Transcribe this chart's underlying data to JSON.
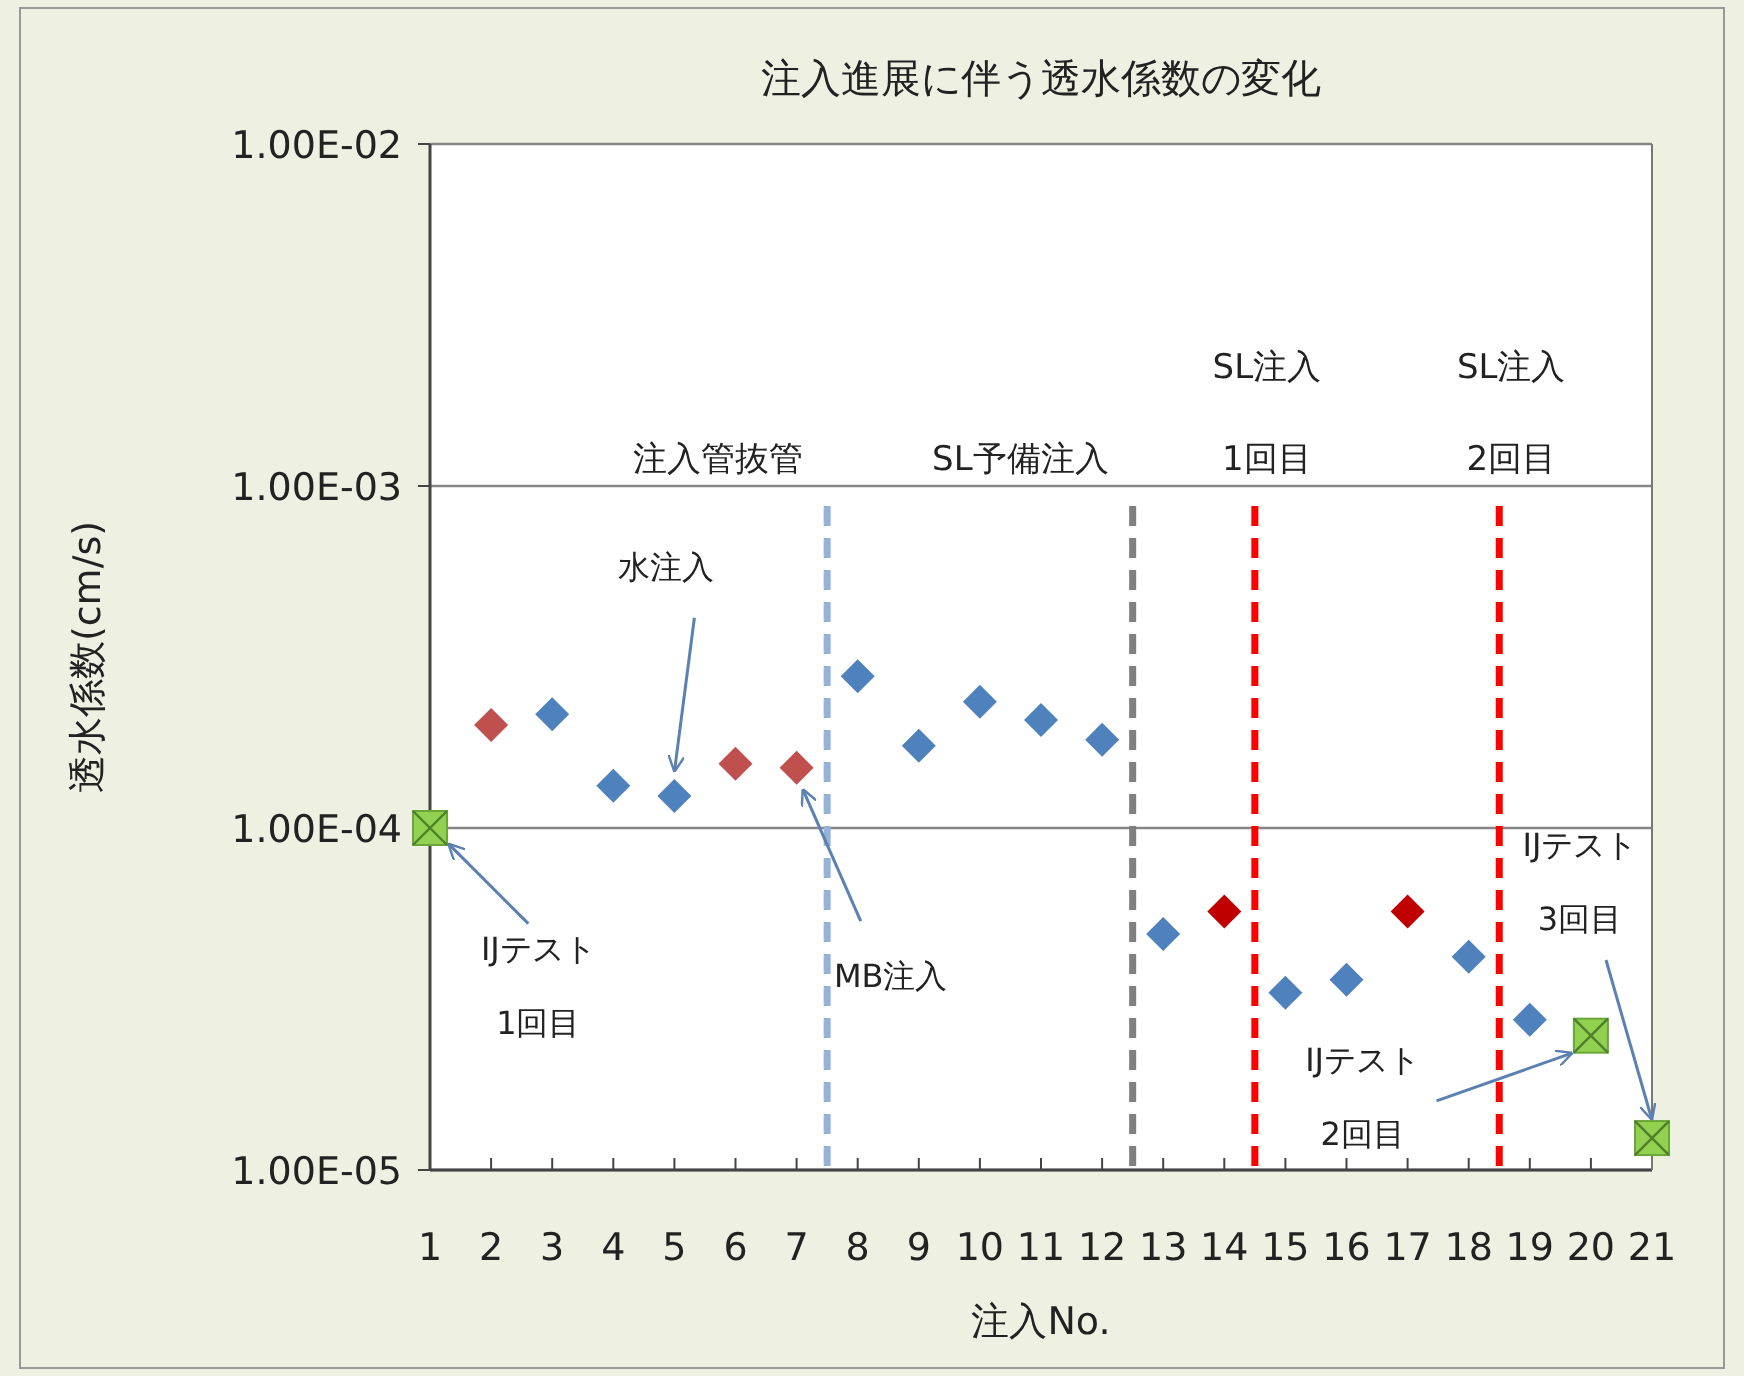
{
  "chart_data": {
    "type": "scatter",
    "title": "注入進展に伴う透水係数の変化",
    "xlabel": "注入No.",
    "ylabel": "透水係数(cm/s)",
    "xlim": [
      1,
      21
    ],
    "xticks": [
      1,
      2,
      3,
      4,
      5,
      6,
      7,
      8,
      9,
      10,
      11,
      12,
      13,
      14,
      15,
      16,
      17,
      18,
      19,
      20,
      21
    ],
    "log": "y",
    "ylim": [
      1e-05,
      0.01
    ],
    "yticks": [
      {
        "value": 1e-05,
        "label": "1.00E-05"
      },
      {
        "value": 0.0001,
        "label": "1.00E-04"
      },
      {
        "value": 0.001,
        "label": "1.00E-03"
      },
      {
        "value": 0.01,
        "label": "1.00E-02"
      }
    ],
    "grid": "y",
    "series": [
      {
        "color": "#4f81bd",
        "marker": "diamond",
        "x": [
          3,
          4,
          5,
          8,
          9,
          10,
          11,
          12,
          13,
          15,
          16,
          18,
          19
        ],
        "values": [
          0.000215,
          0.000133,
          0.000124,
          0.000278,
          0.000174,
          0.000234,
          0.000207,
          0.000181,
          4.9e-05,
          3.3e-05,
          3.6e-05,
          4.2e-05,
          2.75e-05
        ]
      },
      {
        "color": "#c0504d",
        "marker": "diamond",
        "x": [
          2,
          6,
          7
        ],
        "values": [
          0.0002,
          0.000154,
          0.00015
        ]
      },
      {
        "color": "#c00000",
        "marker": "diamond",
        "x": [
          14,
          17
        ],
        "values": [
          5.7e-05,
          5.7e-05
        ]
      },
      {
        "color": "#92d050",
        "marker": "square",
        "x": [
          1,
          20,
          21
        ],
        "values": [
          0.0001,
          2.47e-05,
          1.24e-05
        ]
      }
    ],
    "ref_lines": [
      {
        "axis": "x",
        "value": 7.5,
        "label": "注入管抜管",
        "color": "#95b3d7",
        "line_style": "dashed"
      },
      {
        "axis": "x",
        "value": 12.5,
        "label": "SL予備注入",
        "color": "#7f7f7f",
        "line_style": "dashed"
      },
      {
        "axis": "x",
        "value": 14.5,
        "label": "SL注入\n1回目",
        "color": "#ff0000",
        "line_style": "dashed"
      },
      {
        "axis": "x",
        "value": 18.5,
        "label": "SL注入\n2回目",
        "color": "#ff0000",
        "line_style": "dashed"
      }
    ],
    "annotations": [
      {
        "text": "IJテスト\n1回目",
        "x": 1.3,
        "y": 9e-05
      },
      {
        "text": "水注入",
        "x": 5,
        "y": 0.000146
      },
      {
        "text": "MB注入",
        "x": 7.1,
        "y": 0.00013
      },
      {
        "text": "IJテスト\n2回目",
        "x": 19.7,
        "y": 2.2e-05
      },
      {
        "text": "IJテスト\n3回目",
        "x": 21,
        "y": 1.4e-05
      }
    ]
  }
}
